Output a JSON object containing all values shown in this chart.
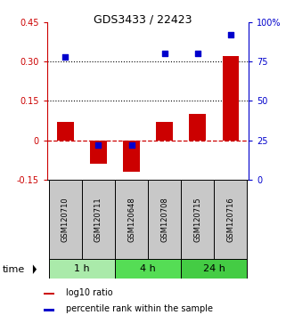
{
  "title": "GDS3433 / 22423",
  "samples": [
    "GSM120710",
    "GSM120711",
    "GSM120648",
    "GSM120708",
    "GSM120715",
    "GSM120716"
  ],
  "log10_ratio": [
    0.07,
    -0.09,
    -0.12,
    0.07,
    0.1,
    0.32
  ],
  "percentile_rank": [
    78,
    22,
    22,
    80,
    80,
    92
  ],
  "ylim_left": [
    -0.15,
    0.45
  ],
  "ylim_right": [
    0,
    100
  ],
  "yticks_left": [
    -0.15,
    0.0,
    0.15,
    0.3,
    0.45
  ],
  "yticks_right": [
    0,
    25,
    50,
    75,
    100
  ],
  "ytick_labels_left": [
    "-0.15",
    "0",
    "0.15",
    "0.30",
    "0.45"
  ],
  "ytick_labels_right": [
    "0",
    "25",
    "50",
    "75",
    "100%"
  ],
  "hlines": [
    0.15,
    0.3
  ],
  "groups": [
    {
      "label": "1 h",
      "indices": [
        0,
        1
      ],
      "color": "#aaeaaa"
    },
    {
      "label": "4 h",
      "indices": [
        2,
        3
      ],
      "color": "#55dd55"
    },
    {
      "label": "24 h",
      "indices": [
        4,
        5
      ],
      "color": "#44cc44"
    }
  ],
  "bar_color": "#cc0000",
  "square_color": "#0000cc",
  "bar_width": 0.5,
  "square_size": 25,
  "zero_line_color": "#cc0000",
  "zero_line_style": "--",
  "background_color": "#ffffff",
  "plot_bg_color": "#ffffff",
  "sample_box_color": "#c8c8c8",
  "time_label": "time",
  "legend_items": [
    "log10 ratio",
    "percentile rank within the sample"
  ],
  "legend_colors": [
    "#cc0000",
    "#0000cc"
  ]
}
